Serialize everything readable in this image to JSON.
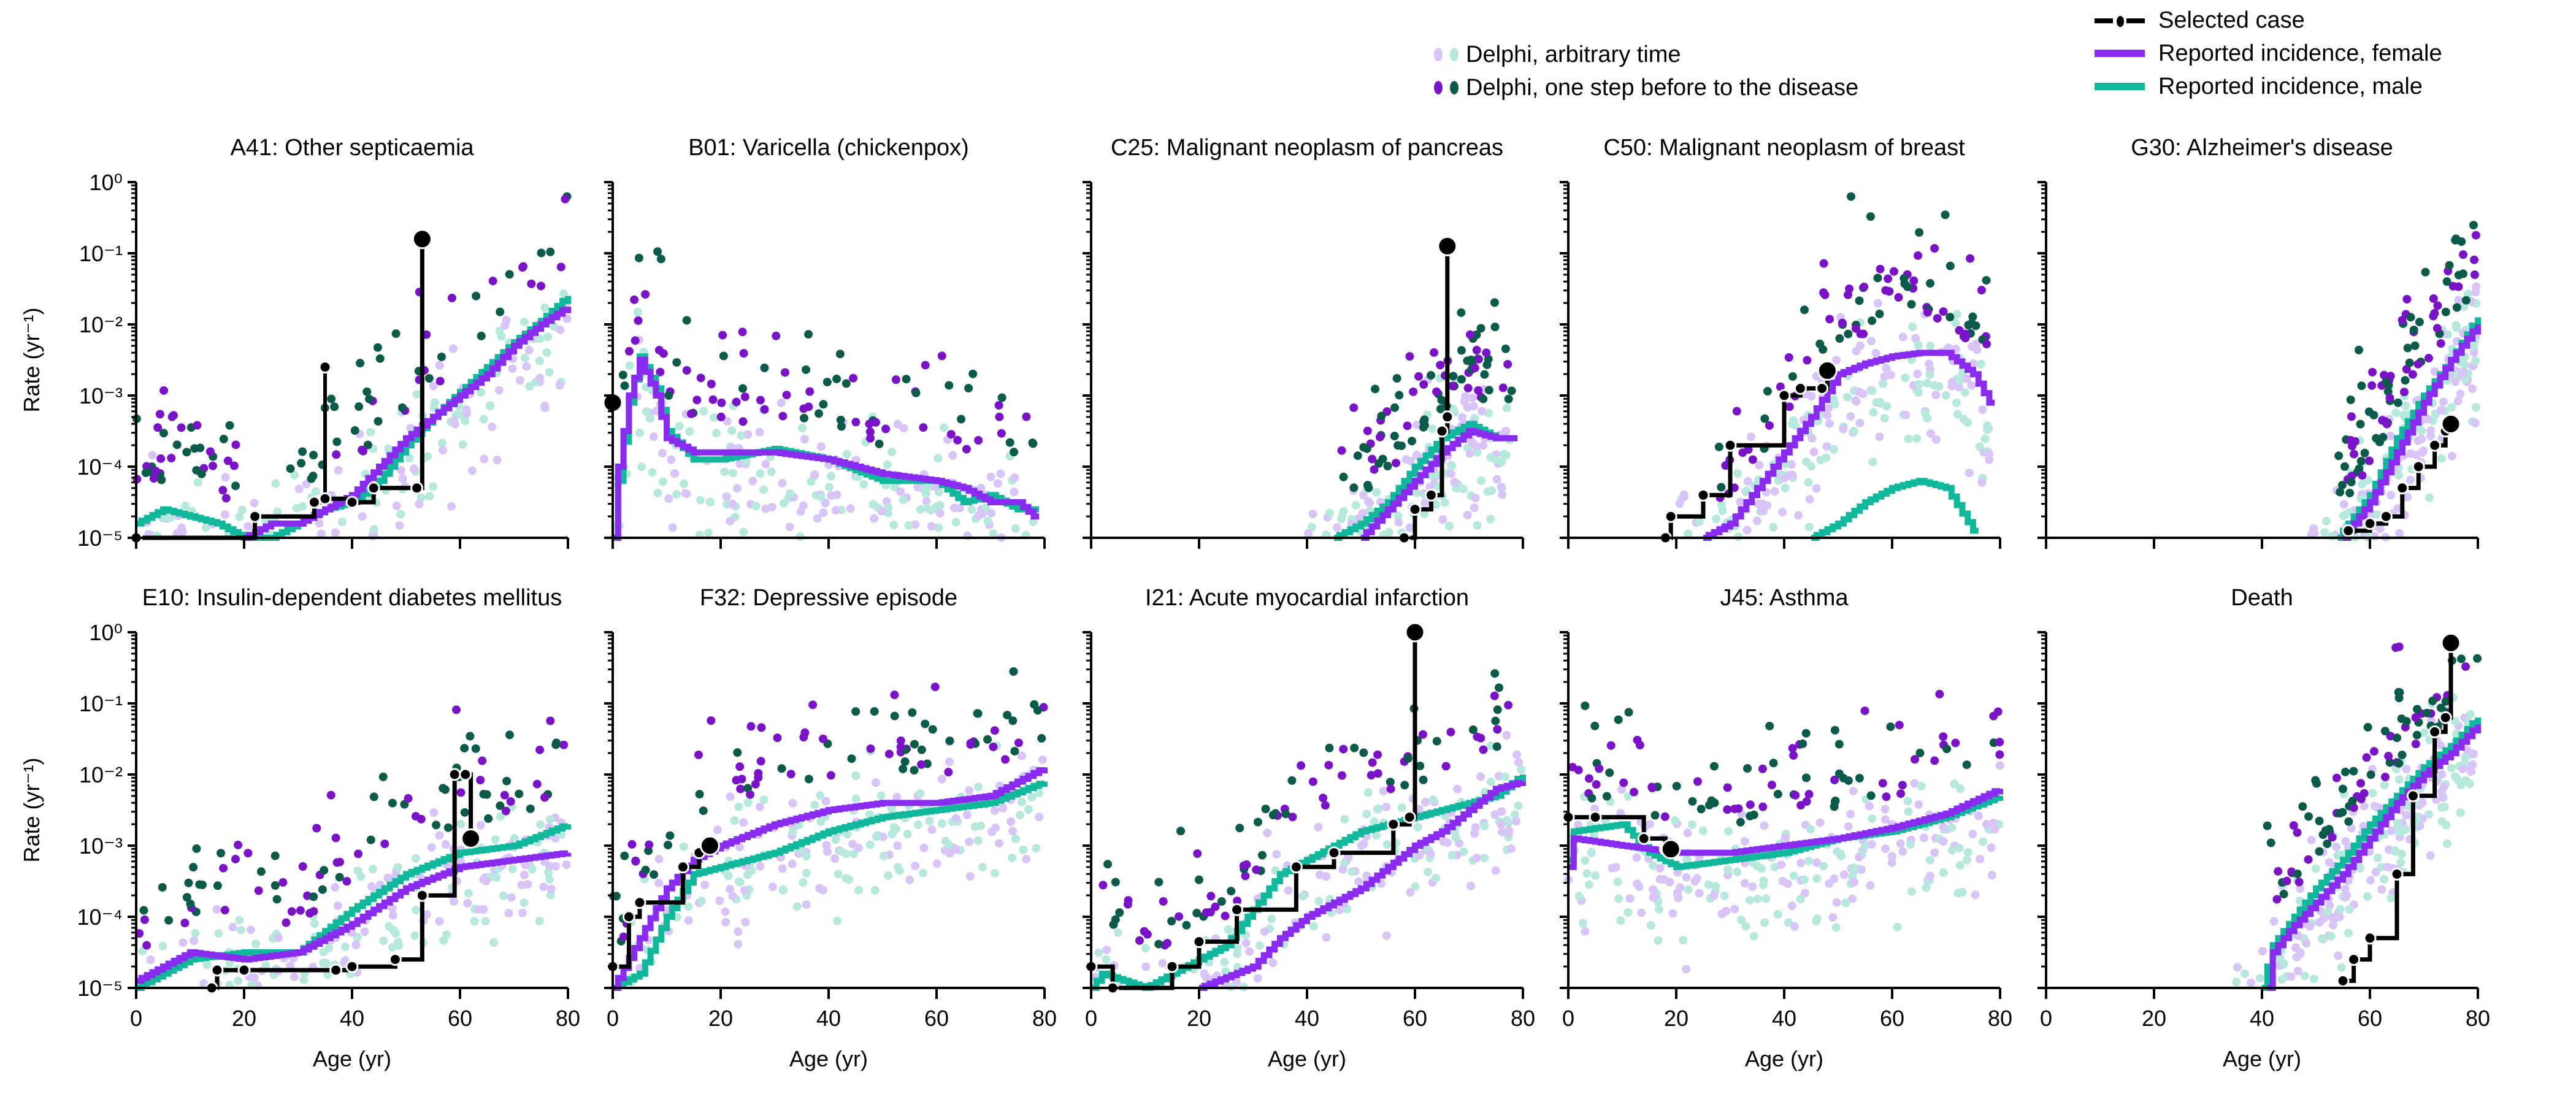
{
  "legend": {
    "arbitrary_time": "Delphi, arbitrary time",
    "one_step_before": "Delphi, one step before to the disease",
    "selected_case": "Selected case",
    "female": "Reported incidence, female",
    "male": "Reported incidence, male"
  },
  "colors": {
    "arbitrary_female": "#d8c4f7",
    "arbitrary_male": "#b6e8de",
    "step_female": "#7a12c8",
    "step_male": "#0b5a4a",
    "female_line": "#8a2cf0",
    "male_line": "#12b89c",
    "selected": "#000000"
  },
  "axis": {
    "y_label": "Rate (yr⁻¹)",
    "x_label": "Age (yr)",
    "y_ticks": [
      "10⁰",
      "10⁻¹",
      "10⁻²",
      "10⁻³",
      "10⁻⁴",
      "10⁻⁵"
    ],
    "x_ticks": [
      "0",
      "20",
      "40",
      "60",
      "80"
    ]
  },
  "chart_data": [
    {
      "type": "line",
      "title": "A41: Other septicaemia",
      "xlim": [
        0,
        80
      ],
      "ylim_log10": [
        -5,
        0
      ],
      "female": [
        [
          20,
          -5
        ],
        [
          25,
          -4.8
        ],
        [
          30,
          -4.8
        ],
        [
          35,
          -4.6
        ],
        [
          40,
          -4.4
        ],
        [
          45,
          -4.0
        ],
        [
          50,
          -3.6
        ],
        [
          55,
          -3.3
        ],
        [
          60,
          -3.0
        ],
        [
          65,
          -2.7
        ],
        [
          70,
          -2.3
        ],
        [
          75,
          -2.0
        ],
        [
          80,
          -1.75
        ]
      ],
      "male": [
        [
          0,
          -4.8
        ],
        [
          5,
          -4.6
        ],
        [
          10,
          -4.7
        ],
        [
          15,
          -4.8
        ],
        [
          20,
          -5
        ],
        [
          25,
          -5
        ],
        [
          30,
          -4.8
        ],
        [
          35,
          -4.6
        ],
        [
          40,
          -4.5
        ],
        [
          45,
          -4.2
        ],
        [
          50,
          -3.7
        ],
        [
          55,
          -3.3
        ],
        [
          60,
          -2.95
        ],
        [
          65,
          -2.6
        ],
        [
          70,
          -2.25
        ],
        [
          75,
          -1.95
        ],
        [
          80,
          -1.6
        ]
      ],
      "selected": [
        [
          0,
          -5
        ],
        [
          22,
          -4.7
        ],
        [
          33,
          -4.5
        ],
        [
          35,
          -4.45
        ],
        [
          40,
          -4.5
        ],
        [
          44,
          -4.3
        ],
        [
          52,
          -4.3
        ]
      ],
      "selected_spike": [
        35,
        -2.6
      ],
      "selected_final": [
        53,
        -0.8
      ]
    },
    {
      "type": "line",
      "title": "B01: Varicella (chickenpox)",
      "xlim": [
        0,
        80
      ],
      "ylim_log10": [
        -5,
        0
      ],
      "female": [
        [
          0,
          -5
        ],
        [
          1,
          -4
        ],
        [
          3,
          -3
        ],
        [
          5,
          -2.5
        ],
        [
          8,
          -3
        ],
        [
          10,
          -3.6
        ],
        [
          15,
          -3.8
        ],
        [
          20,
          -3.8
        ],
        [
          30,
          -3.8
        ],
        [
          40,
          -3.9
        ],
        [
          50,
          -4.1
        ],
        [
          60,
          -4.2
        ],
        [
          65,
          -4.3
        ],
        [
          70,
          -4.5
        ],
        [
          75,
          -4.5
        ],
        [
          78,
          -4.7
        ]
      ],
      "male": [
        [
          0,
          -5
        ],
        [
          1,
          -4.2
        ],
        [
          3,
          -3.1
        ],
        [
          5,
          -2.45
        ],
        [
          8,
          -2.9
        ],
        [
          10,
          -3.5
        ],
        [
          15,
          -3.9
        ],
        [
          20,
          -3.9
        ],
        [
          30,
          -3.75
        ],
        [
          40,
          -3.9
        ],
        [
          50,
          -4.2
        ],
        [
          60,
          -4.2
        ],
        [
          65,
          -4.5
        ],
        [
          70,
          -4.4
        ],
        [
          75,
          -4.6
        ],
        [
          78,
          -4.6
        ]
      ],
      "selected": [],
      "selected_spike": null,
      "selected_final": [
        0,
        -3.1
      ]
    },
    {
      "type": "line",
      "title": "C25: Malignant neoplasm of pancreas",
      "xlim": [
        0,
        80
      ],
      "ylim_log10": [
        -5,
        0
      ],
      "female": [
        [
          50,
          -5
        ],
        [
          55,
          -4.6
        ],
        [
          60,
          -4.2
        ],
        [
          65,
          -3.8
        ],
        [
          70,
          -3.5
        ],
        [
          75,
          -3.6
        ],
        [
          78,
          -3.6
        ]
      ],
      "male": [
        [
          45,
          -5
        ],
        [
          50,
          -4.8
        ],
        [
          55,
          -4.5
        ],
        [
          60,
          -4.0
        ],
        [
          65,
          -3.6
        ],
        [
          70,
          -3.4
        ],
        [
          75,
          -3.6
        ],
        [
          78,
          -3.6
        ]
      ],
      "selected": [
        [
          58,
          -5
        ],
        [
          60,
          -4.6
        ],
        [
          63,
          -4.4
        ],
        [
          65,
          -3.5
        ],
        [
          66,
          -3.3
        ]
      ],
      "selected_spike": null,
      "selected_final": [
        66,
        -0.9
      ]
    },
    {
      "type": "line",
      "title": "C50: Malignant neoplasm of breast",
      "xlim": [
        0,
        80
      ],
      "ylim_log10": [
        -5,
        0
      ],
      "female": [
        [
          25,
          -5
        ],
        [
          30,
          -4.8
        ],
        [
          35,
          -4.3
        ],
        [
          40,
          -3.8
        ],
        [
          45,
          -3.3
        ],
        [
          50,
          -2.7
        ],
        [
          55,
          -2.55
        ],
        [
          60,
          -2.45
        ],
        [
          65,
          -2.4
        ],
        [
          70,
          -2.4
        ],
        [
          75,
          -2.7
        ],
        [
          78,
          -3.1
        ]
      ],
      "male": [
        [
          45,
          -5
        ],
        [
          50,
          -4.8
        ],
        [
          55,
          -4.5
        ],
        [
          60,
          -4.3
        ],
        [
          65,
          -4.2
        ],
        [
          70,
          -4.3
        ],
        [
          75,
          -4.9
        ]
      ],
      "selected": [
        [
          18,
          -5
        ],
        [
          19,
          -4.7
        ],
        [
          25,
          -4.4
        ],
        [
          30,
          -3.7
        ],
        [
          40,
          -3.0
        ],
        [
          43,
          -2.9
        ],
        [
          47,
          -2.9
        ]
      ],
      "selected_spike": null,
      "selected_final": [
        48,
        -2.65
      ]
    },
    {
      "type": "line",
      "title": "G30: Alzheimer's disease",
      "xlim": [
        0,
        80
      ],
      "ylim_log10": [
        -5,
        0
      ],
      "female": [
        [
          55,
          -5
        ],
        [
          60,
          -4.5
        ],
        [
          65,
          -3.8
        ],
        [
          70,
          -3.1
        ],
        [
          75,
          -2.5
        ],
        [
          80,
          -2.0
        ]
      ],
      "male": [
        [
          54,
          -5
        ],
        [
          60,
          -4.4
        ],
        [
          65,
          -3.6
        ],
        [
          70,
          -3.0
        ],
        [
          75,
          -2.5
        ],
        [
          80,
          -1.9
        ]
      ],
      "selected": [
        [
          56,
          -4.9
        ],
        [
          60,
          -4.8
        ],
        [
          63,
          -4.7
        ],
        [
          66,
          -4.3
        ],
        [
          69,
          -4.0
        ],
        [
          72,
          -3.7
        ],
        [
          74,
          -3.5
        ]
      ],
      "selected_spike": null,
      "selected_final": [
        75,
        -3.4
      ]
    },
    {
      "type": "line",
      "title": "E10: Insulin-dependent diabetes mellitus",
      "xlim": [
        0,
        80
      ],
      "ylim_log10": [
        -5,
        0
      ],
      "female": [
        [
          0,
          -4.9
        ],
        [
          10,
          -4.5
        ],
        [
          20,
          -4.6
        ],
        [
          30,
          -4.5
        ],
        [
          40,
          -4.1
        ],
        [
          50,
          -3.6
        ],
        [
          60,
          -3.3
        ],
        [
          70,
          -3.2
        ],
        [
          80,
          -3.1
        ]
      ],
      "male": [
        [
          0,
          -5
        ],
        [
          10,
          -4.6
        ],
        [
          20,
          -4.5
        ],
        [
          30,
          -4.5
        ],
        [
          40,
          -3.9
        ],
        [
          50,
          -3.4
        ],
        [
          60,
          -3.1
        ],
        [
          70,
          -3.0
        ],
        [
          80,
          -2.7
        ]
      ],
      "selected": [
        [
          14,
          -5
        ],
        [
          15,
          -4.75
        ],
        [
          20,
          -4.75
        ],
        [
          37,
          -4.75
        ],
        [
          40,
          -4.7
        ],
        [
          48,
          -4.6
        ],
        [
          53,
          -3.7
        ],
        [
          59,
          -2.0
        ],
        [
          61,
          -2.0
        ]
      ],
      "selected_spike": null,
      "selected_final": [
        62,
        -2.9
      ]
    },
    {
      "type": "line",
      "title": "F32: Depressive episode",
      "xlim": [
        0,
        80
      ],
      "ylim_log10": [
        -5,
        0
      ],
      "female": [
        [
          0,
          -5
        ],
        [
          5,
          -4.3
        ],
        [
          10,
          -3.6
        ],
        [
          15,
          -3.2
        ],
        [
          20,
          -3.0
        ],
        [
          30,
          -2.7
        ],
        [
          40,
          -2.5
        ],
        [
          50,
          -2.4
        ],
        [
          60,
          -2.4
        ],
        [
          70,
          -2.3
        ],
        [
          80,
          -1.9
        ]
      ],
      "male": [
        [
          0,
          -5
        ],
        [
          5,
          -4.8
        ],
        [
          10,
          -4.0
        ],
        [
          15,
          -3.4
        ],
        [
          20,
          -3.3
        ],
        [
          30,
          -3.1
        ],
        [
          40,
          -2.8
        ],
        [
          50,
          -2.6
        ],
        [
          60,
          -2.5
        ],
        [
          70,
          -2.4
        ],
        [
          80,
          -2.1
        ]
      ],
      "selected": [
        [
          0,
          -4.7
        ],
        [
          3,
          -4.0
        ],
        [
          5,
          -3.8
        ],
        [
          13,
          -3.3
        ],
        [
          16,
          -3.1
        ]
      ],
      "selected_spike": null,
      "selected_final": [
        18,
        -3.0
      ]
    },
    {
      "type": "line",
      "title": "I21: Acute myocardial infarction",
      "xlim": [
        0,
        80
      ],
      "ylim_log10": [
        -5,
        0
      ],
      "female": [
        [
          20,
          -5
        ],
        [
          30,
          -4.7
        ],
        [
          35,
          -4.3
        ],
        [
          40,
          -4.0
        ],
        [
          45,
          -3.8
        ],
        [
          50,
          -3.6
        ],
        [
          55,
          -3.3
        ],
        [
          60,
          -3.0
        ],
        [
          65,
          -2.8
        ],
        [
          70,
          -2.5
        ],
        [
          75,
          -2.2
        ],
        [
          80,
          -2.1
        ]
      ],
      "male": [
        [
          0,
          -5
        ],
        [
          2,
          -4.8
        ],
        [
          10,
          -5
        ],
        [
          20,
          -4.6
        ],
        [
          25,
          -4.4
        ],
        [
          30,
          -3.9
        ],
        [
          35,
          -3.4
        ],
        [
          40,
          -3.2
        ],
        [
          45,
          -3.0
        ],
        [
          50,
          -2.8
        ],
        [
          55,
          -2.7
        ],
        [
          60,
          -2.6
        ],
        [
          65,
          -2.5
        ],
        [
          70,
          -2.4
        ],
        [
          75,
          -2.3
        ],
        [
          80,
          -2.0
        ]
      ],
      "selected": [
        [
          0,
          -4.7
        ],
        [
          4,
          -5
        ],
        [
          15,
          -4.7
        ],
        [
          20,
          -4.35
        ],
        [
          27,
          -3.9
        ],
        [
          38,
          -3.3
        ],
        [
          45,
          -3.1
        ],
        [
          56,
          -2.7
        ],
        [
          59,
          -2.6
        ]
      ],
      "selected_spike": null,
      "selected_final": [
        60,
        0
      ]
    },
    {
      "type": "line",
      "title": "J45: Asthma",
      "xlim": [
        0,
        80
      ],
      "ylim_log10": [
        -5,
        0
      ],
      "female": [
        [
          0,
          -3.3
        ],
        [
          1,
          -2.9
        ],
        [
          10,
          -3.0
        ],
        [
          20,
          -3.1
        ],
        [
          30,
          -3.1
        ],
        [
          40,
          -3.0
        ],
        [
          50,
          -2.9
        ],
        [
          60,
          -2.75
        ],
        [
          70,
          -2.55
        ],
        [
          80,
          -2.2
        ]
      ],
      "male": [
        [
          0,
          -3.2
        ],
        [
          1,
          -2.8
        ],
        [
          10,
          -2.7
        ],
        [
          15,
          -3.1
        ],
        [
          20,
          -3.3
        ],
        [
          30,
          -3.2
        ],
        [
          40,
          -3.1
        ],
        [
          50,
          -2.9
        ],
        [
          60,
          -2.8
        ],
        [
          70,
          -2.6
        ],
        [
          80,
          -2.3
        ]
      ],
      "selected": [
        [
          0,
          -2.6
        ],
        [
          5,
          -2.6
        ],
        [
          14,
          -2.9
        ],
        [
          18,
          -3.05
        ]
      ],
      "selected_spike": null,
      "selected_final": [
        19,
        -3.05
      ]
    },
    {
      "type": "line",
      "title": "Death",
      "xlim": [
        0,
        80
      ],
      "ylim_log10": [
        -5,
        0
      ],
      "female": [
        [
          41,
          -5
        ],
        [
          42,
          -4.5
        ],
        [
          45,
          -4.2
        ],
        [
          50,
          -3.8
        ],
        [
          55,
          -3.4
        ],
        [
          60,
          -2.9
        ],
        [
          65,
          -2.4
        ],
        [
          70,
          -2.0
        ],
        [
          75,
          -1.7
        ],
        [
          80,
          -1.3
        ]
      ],
      "male": [
        [
          40,
          -5
        ],
        [
          42,
          -4.4
        ],
        [
          45,
          -4.1
        ],
        [
          50,
          -3.6
        ],
        [
          55,
          -3.2
        ],
        [
          60,
          -2.7
        ],
        [
          65,
          -2.3
        ],
        [
          70,
          -1.9
        ],
        [
          75,
          -1.6
        ],
        [
          80,
          -1.2
        ]
      ],
      "selected": [
        [
          55,
          -4.9
        ],
        [
          57,
          -4.6
        ],
        [
          60,
          -4.3
        ],
        [
          65,
          -3.4
        ],
        [
          68,
          -2.3
        ],
        [
          72,
          -1.4
        ],
        [
          74,
          -1.2
        ]
      ],
      "selected_spike": null,
      "selected_final": [
        75,
        -0.15
      ]
    }
  ]
}
